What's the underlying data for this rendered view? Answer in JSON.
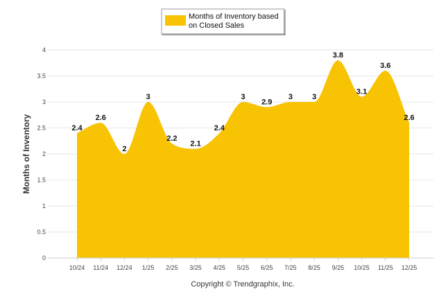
{
  "chart_data": {
    "type": "area",
    "title": "",
    "xlabel": "",
    "ylabel": "Months of Inventory",
    "ylim": [
      0,
      4
    ],
    "yticks": [
      "0",
      "0.5",
      "1",
      "1.5",
      "2",
      "2.5",
      "3",
      "3.5",
      "4"
    ],
    "categories": [
      "10/24",
      "11/24",
      "12/24",
      "1/25",
      "2/25",
      "3/25",
      "4/25",
      "5/25",
      "6/25",
      "7/25",
      "8/25",
      "9/25",
      "10/25",
      "11/25",
      "12/25"
    ],
    "series": [
      {
        "name": "Months of Inventory based on Closed Sales",
        "values": [
          2.4,
          2.6,
          2,
          3,
          2.2,
          2.1,
          2.4,
          3,
          2.9,
          3,
          3,
          3.8,
          3.1,
          3.6,
          2.6
        ],
        "labels": [
          "2.4",
          "2.6",
          "2",
          "3",
          "2.2",
          "2.1",
          "2.4",
          "3",
          "2.9",
          "3",
          "3",
          "3.8",
          "3.1",
          "3.6",
          "2.6"
        ],
        "color": "#F8C303"
      }
    ],
    "legend": {
      "line1": "Months of Inventory based",
      "line2": "on Closed Sales",
      "position": "top-center"
    },
    "grid": true,
    "gridColor": "#e6e6e6",
    "footer": "Copyright © Trendgraphix, Inc."
  }
}
